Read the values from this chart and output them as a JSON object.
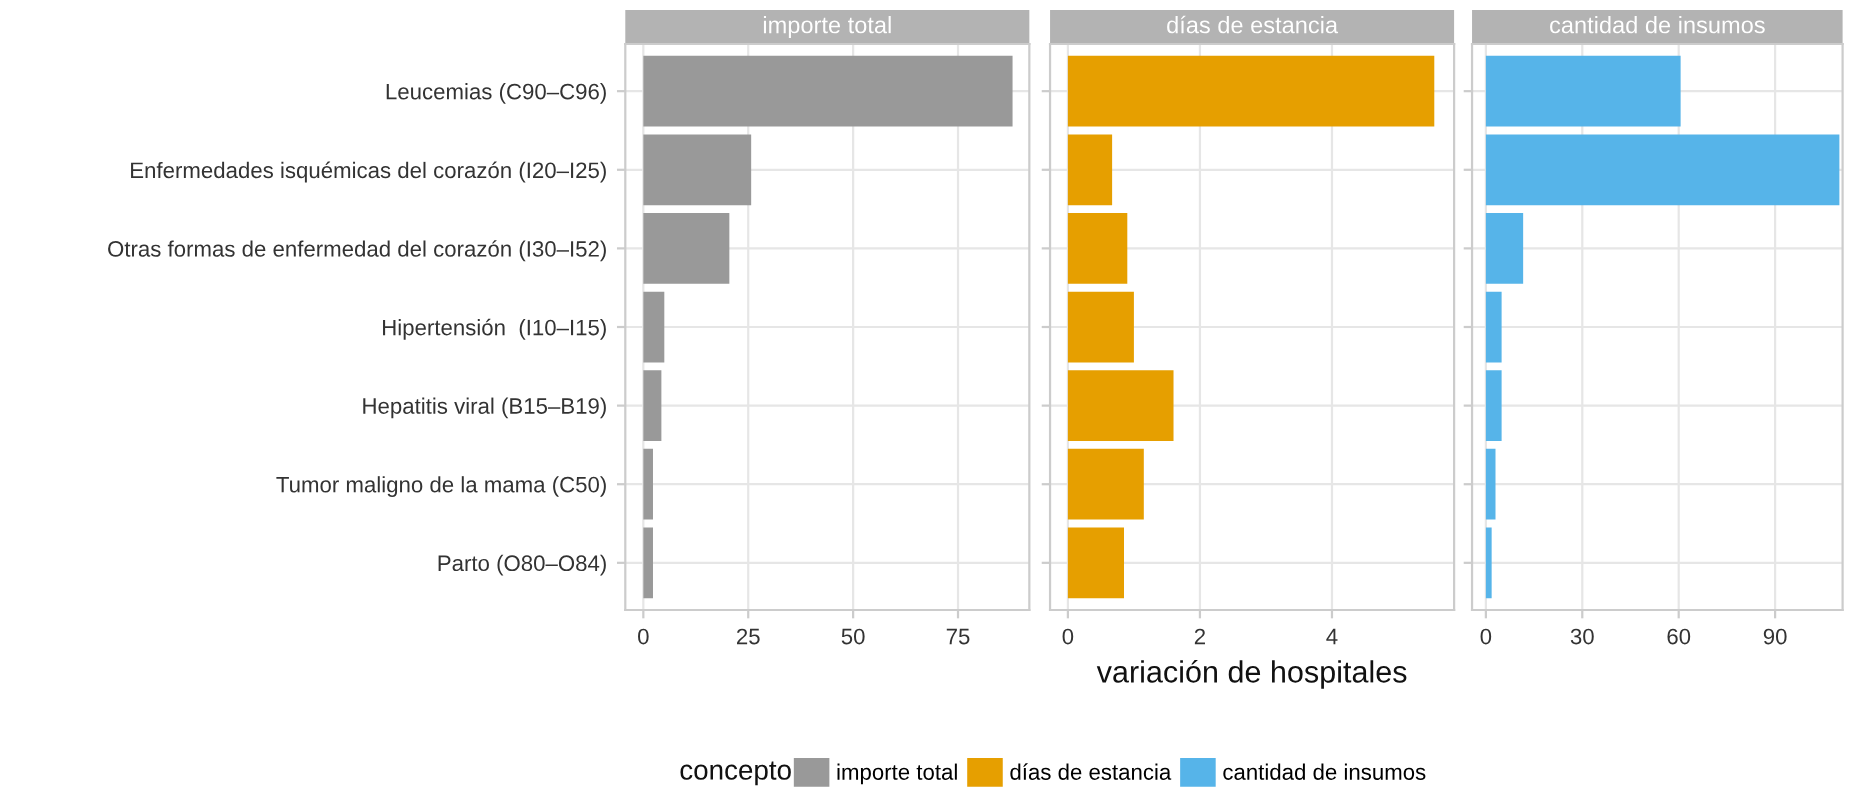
{
  "chart_data": [
    {
      "type": "bar",
      "orientation": "horizontal",
      "title": "importe total",
      "categories": [
        "Leucemias (C90–C96)",
        "Enfermedades isquémicas del corazón (I20–I25)",
        "Otras formas de enfermedad del corazón (I30–I52)",
        "Hipertensión  (I10–I15)",
        "Hepatitis viral (B15–B19)",
        "Tumor maligno de la mama (C50)",
        "Parto (O80–O84)"
      ],
      "series": [
        {
          "name": "importe total",
          "color": "#999999",
          "values": [
            88,
            25.7,
            20.5,
            5,
            4.3,
            2.3,
            2.3
          ]
        }
      ],
      "xlim": [
        -4.3,
        92
      ],
      "xticks": [
        0,
        25,
        50,
        75
      ],
      "grid": true,
      "legend": "bottom",
      "legend_title": "concepto"
    },
    {
      "type": "bar",
      "orientation": "horizontal",
      "title": "días de estancia",
      "xlabel": "variación de hospitales",
      "series": [
        {
          "name": "días de estancia",
          "color": "#E69F00",
          "values": [
            5.55,
            0.67,
            0.9,
            1.0,
            1.6,
            1.15,
            0.85
          ]
        }
      ],
      "xlim": [
        -0.27,
        5.85
      ],
      "xticks": [
        0,
        2,
        4
      ],
      "grid": true,
      "legend": "bottom",
      "tick_labels": "x"
    },
    {
      "type": "bar",
      "orientation": "horizontal",
      "title": "cantidad de insumos",
      "series": [
        {
          "name": "cantidad de insumos",
          "color": "#56B4E9",
          "values": [
            60.6,
            110,
            11.6,
            4.9,
            4.9,
            3,
            1.8
          ]
        }
      ],
      "xlim": [
        -4.3,
        111
      ],
      "xticks": [
        0,
        30,
        60,
        90
      ],
      "grid": true,
      "legend": "bottom",
      "tick_labels": "x"
    }
  ]
}
